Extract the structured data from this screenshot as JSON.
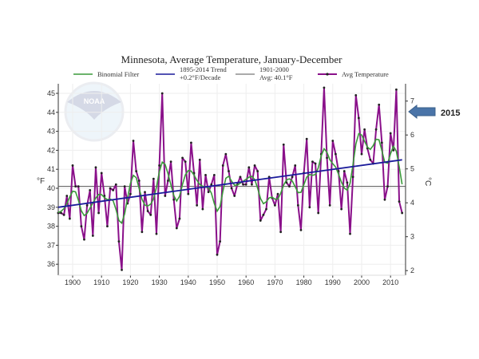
{
  "chart_data": {
    "type": "line",
    "title": "Minnesota, Average Temperature, January-December",
    "ylabel": "°F",
    "ylabel_right": "°C",
    "xlim": [
      1895,
      2014
    ],
    "ylim": [
      35.5,
      45.5
    ],
    "ylim_right": [
      2,
      7.5
    ],
    "x_ticks": [
      1900,
      1910,
      1920,
      1930,
      1940,
      1950,
      1960,
      1970,
      1980,
      1990,
      2000,
      2010
    ],
    "y_ticks": [
      36,
      37,
      38,
      39,
      40,
      41,
      42,
      43,
      44,
      45
    ],
    "y_ticks_right": [
      2,
      3,
      4,
      5,
      6,
      7
    ],
    "grid": true,
    "legend": {
      "placement": "top",
      "items": [
        {
          "label": "Binomial Filter",
          "color": "#3a9a3a"
        },
        {
          "label": "1895-2014 Trend",
          "label2": "+0.2°F/Decade",
          "color": "#1a1a9a"
        },
        {
          "label": "1901-2000",
          "label2": "Avg: 40.1°F",
          "color": "#555555"
        },
        {
          "label": "Avg Temperature",
          "color": "#8a108a"
        }
      ]
    },
    "series": [
      {
        "name": "Avg Temperature",
        "x_start": 1895,
        "values": [
          38.7,
          38.7,
          38.6,
          39.6,
          38.4,
          41.2,
          40.1,
          40.1,
          38.0,
          37.3,
          39.1,
          39.9,
          37.5,
          41.1,
          38.7,
          40.8,
          39.6,
          38.0,
          40.0,
          39.9,
          40.2,
          37.2,
          35.7,
          40.1,
          39.2,
          39.7,
          42.5,
          40.9,
          40.4,
          37.7,
          39.8,
          38.8,
          38.6,
          40.5,
          37.6,
          41.2,
          45.0,
          39.6,
          40.4,
          41.4,
          39.4,
          37.9,
          38.4,
          41.6,
          41.4,
          39.7,
          42.4,
          40.8,
          39.1,
          41.5,
          38.9,
          40.7,
          39.8,
          40.2,
          40.7,
          36.5,
          37.2,
          41.2,
          41.8,
          40.9,
          40.0,
          39.6,
          40.2,
          40.6,
          40.2,
          40.2,
          41.1,
          40.2,
          41.2,
          40.9,
          38.3,
          38.6,
          38.9,
          40.6,
          39.5,
          39.1,
          39.7,
          37.7,
          42.3,
          40.3,
          40.1,
          40.6,
          41.2,
          39.1,
          37.8,
          40.8,
          42.6,
          39.0,
          41.4,
          41.3,
          38.7,
          41.8,
          45.3,
          41.6,
          39.1,
          42.5,
          41.8,
          40.9,
          38.9,
          40.9,
          40.3,
          37.6,
          40.6,
          44.9,
          43.7,
          41.8,
          43.1,
          42.1,
          41.5,
          41.3,
          43.1,
          44.4,
          42.4,
          39.4,
          40.1,
          42.9,
          42.0,
          45.2,
          39.3,
          38.7
        ]
      },
      {
        "name": "1895-2014 Trend",
        "x": [
          1895,
          2014
        ],
        "values": [
          39.0,
          41.5
        ]
      },
      {
        "name": "1901-2000 Avg",
        "value": 40.1
      }
    ],
    "annotation": {
      "label": "2015",
      "value_c": 6.7,
      "color": "#4a74a8"
    }
  },
  "logo": "NOAA"
}
